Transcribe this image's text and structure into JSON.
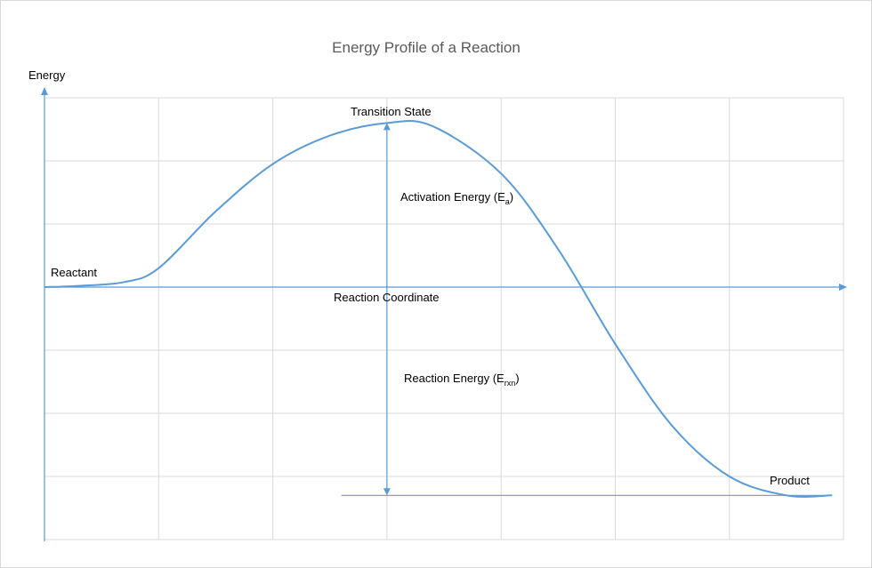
{
  "chart_data": {
    "type": "line",
    "title": "Energy Profile of a Reaction",
    "ylabel": "Energy",
    "xlabel": "Reaction Coordinate",
    "xlim": [
      0,
      7
    ],
    "ylim": [
      -4,
      3
    ],
    "grid": true,
    "series": [
      {
        "color": "#5b9bd5",
        "x": [
          0,
          0.3,
          0.7,
          1.0,
          1.5,
          2.0,
          2.5,
          3.0,
          3.4,
          4.0,
          4.5,
          5.0,
          5.5,
          6.0,
          6.5,
          6.9
        ],
        "y": [
          0,
          0.02,
          0.08,
          0.3,
          1.2,
          1.95,
          2.4,
          2.6,
          2.55,
          1.8,
          0.6,
          -0.9,
          -2.2,
          -3.0,
          -3.3,
          -3.3
        ]
      }
    ],
    "annotations": {
      "reactant": "Reactant",
      "transition_state": "Transition State",
      "activation_energy": {
        "main": "Activation Energy (E",
        "sub": "a",
        "close": ")"
      },
      "reaction_energy": {
        "main": "Reaction Energy (E",
        "sub": "rxn",
        "close": ")"
      },
      "product": "Product"
    },
    "markers": {
      "ts_x": 3.0,
      "ts_y": 2.6,
      "product_level": -3.3,
      "product_line_start_x": 2.6
    }
  },
  "colors": {
    "series": "#5b9bd5",
    "grid": "#d9d9d9",
    "title": "#595959"
  }
}
